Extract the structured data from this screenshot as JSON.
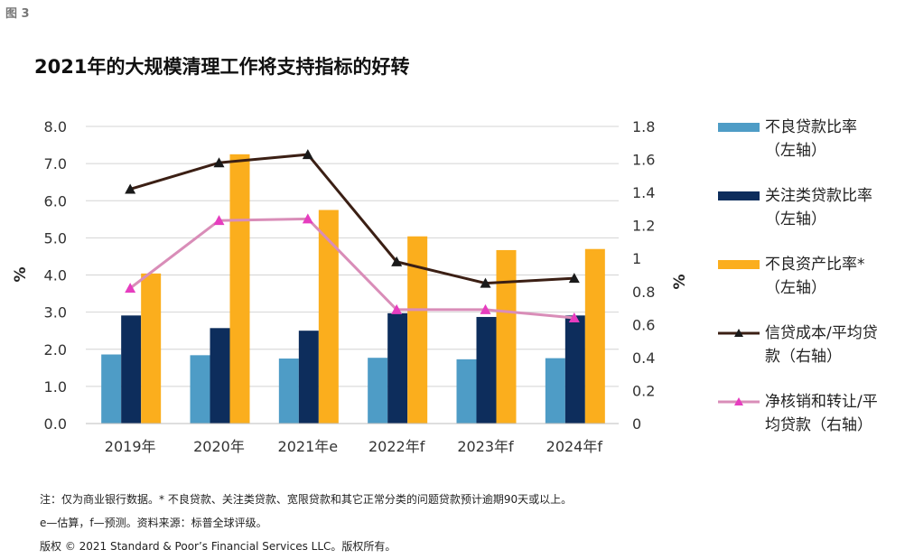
{
  "figure_label": "图 3",
  "chart_data": {
    "type": "bar",
    "title": "2021年的大规模清理工作将支持指标的好转",
    "categories": [
      "2019年",
      "2020年",
      "2021年e",
      "2022年f",
      "2023年f",
      "2024年f"
    ],
    "left_axis": {
      "label": "%",
      "min": 0,
      "max": 8,
      "ticks": [
        "0.0",
        "1.0",
        "2.0",
        "3.0",
        "4.0",
        "5.0",
        "6.0",
        "7.0",
        "8.0"
      ]
    },
    "right_axis": {
      "label": "%",
      "min": 0,
      "max": 1.8,
      "ticks": [
        "0",
        "0.2",
        "0.4",
        "0.6",
        "0.8",
        "1",
        "1.2",
        "1.4",
        "1.6",
        "1.8"
      ]
    },
    "grid": true,
    "series": [
      {
        "name": "不良贷款比率",
        "axis_note": "（左轴）",
        "type": "bar",
        "axis": "left",
        "color": "#4e9cc6",
        "values": [
          1.86,
          1.84,
          1.75,
          1.77,
          1.73,
          1.76
        ]
      },
      {
        "name": "关注类贷款比率",
        "axis_note": "（左轴）",
        "type": "bar",
        "axis": "left",
        "color": "#0d2d5c",
        "values": [
          2.91,
          2.57,
          2.5,
          2.97,
          2.87,
          2.91
        ]
      },
      {
        "name": "不良资产比率*",
        "axis_note": "（左轴）",
        "type": "bar",
        "axis": "left",
        "color": "#fbae1d",
        "values": [
          4.04,
          7.25,
          5.75,
          5.04,
          4.67,
          4.7
        ]
      },
      {
        "name": "信贷成本/平均贷款",
        "axis_note": "（右轴）",
        "type": "line",
        "axis": "right",
        "color": "#3b1f14",
        "values": [
          1.42,
          1.58,
          1.63,
          0.98,
          0.85,
          0.88
        ]
      },
      {
        "name": "净核销和转让/平均贷款",
        "axis_note": "（右轴）",
        "type": "line",
        "axis": "right",
        "color": "#d98db8",
        "marker_color": "#e63dbf",
        "values": [
          0.82,
          1.23,
          1.24,
          0.69,
          0.69,
          0.64
        ]
      }
    ],
    "legend_position": "right"
  },
  "legend": [
    {
      "line1": "不良贷款比率",
      "line2": "（左轴）"
    },
    {
      "line1": "关注类贷款比率",
      "line2": "（左轴）"
    },
    {
      "line1": "不良资产比率*",
      "line2": "（左轴）"
    },
    {
      "line1": "信贷成本/平均贷",
      "line2": "款（右轴）"
    },
    {
      "line1": "净核销和转让/平",
      "line2": "均贷款（右轴）"
    }
  ],
  "notes": {
    "line1": "注：仅为商业银行数据。* 不良贷款、关注类贷款、宽限贷款和其它正常分类的问题贷款预计逾期90天或以上。",
    "line2": "e—估算，f—预测。资料来源：标普全球评级。",
    "line3": "版权 © 2021 Standard & Poor’s Financial Services LLC。版权所有。"
  }
}
